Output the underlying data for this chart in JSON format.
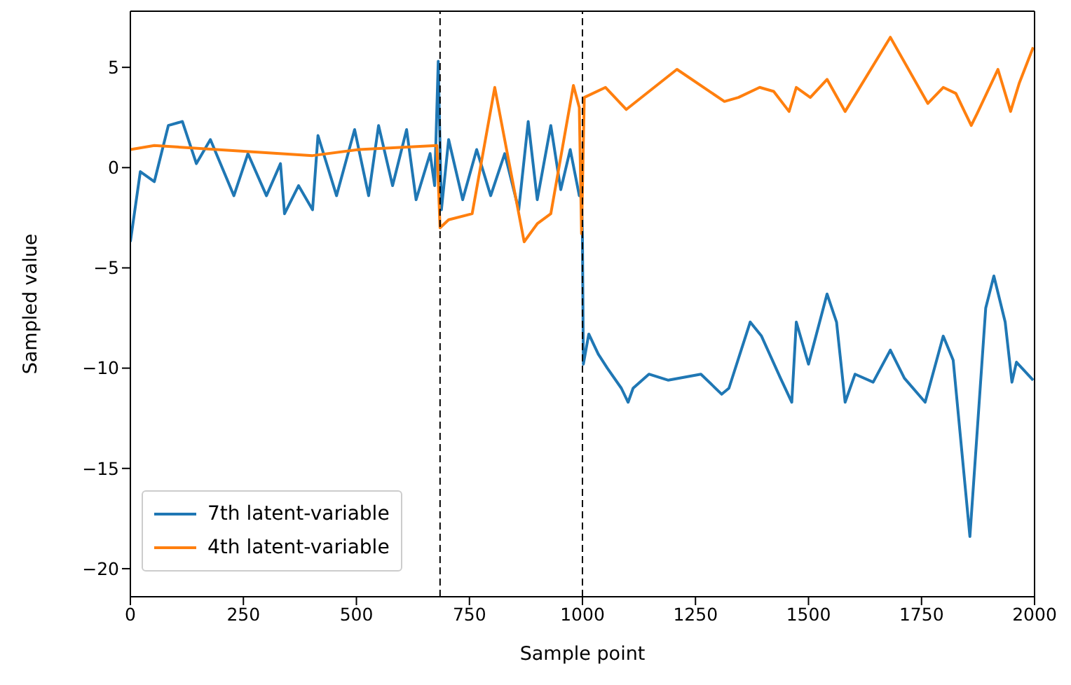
{
  "chart_data": {
    "type": "line",
    "xlabel": "Sample point",
    "ylabel": "Sampled value",
    "xlim": [
      0,
      2000
    ],
    "xticks": [
      0,
      250,
      500,
      750,
      1000,
      1250,
      1500,
      1750,
      2000
    ],
    "ylim": [
      -21.4,
      7.8
    ],
    "yticks": [
      {
        "value": -20,
        "label": "−20"
      },
      {
        "value": -15,
        "label": "−15"
      },
      {
        "value": -10,
        "label": "−10"
      },
      {
        "value": -5,
        "label": "−5"
      },
      0,
      5
    ],
    "legend": "bottom left",
    "marker": "none",
    "line_style": "solid",
    "ref_lines": [
      {
        "axis": "x",
        "value": 685,
        "color": "#000000",
        "line_style": "dashed"
      },
      {
        "axis": "x",
        "value": 1000,
        "color": "#000000",
        "line_style": "dashed"
      }
    ],
    "series": [
      {
        "name": "7th latent-variable",
        "color": "#1f77b4",
        "x": [
          0,
          22,
          53,
          84,
          115,
          146,
          177,
          229,
          260,
          301,
          332,
          341,
          372,
          403,
          415,
          456,
          496,
          527,
          549,
          580,
          611,
          632,
          663,
          673,
          681,
          688,
          704,
          735,
          766,
          797,
          828,
          859,
          880,
          900,
          930,
          952,
          973,
          993,
          998,
          1000,
          1002,
          1014,
          1035,
          1055,
          1086,
          1101,
          1112,
          1147,
          1190,
          1262,
          1308,
          1324,
          1371,
          1396,
          1438,
          1463,
          1473,
          1500,
          1541,
          1562,
          1581,
          1603,
          1643,
          1681,
          1712,
          1758,
          1798,
          1820,
          1857,
          1892,
          1910,
          1935,
          1950,
          1960,
          1997
        ],
        "values": [
          -3.7,
          -0.2,
          -0.7,
          2.1,
          2.3,
          0.2,
          1.4,
          -1.4,
          0.7,
          -1.4,
          0.2,
          -2.3,
          -0.9,
          -2.1,
          1.6,
          -1.4,
          1.9,
          -1.4,
          2.1,
          -0.9,
          1.9,
          -1.6,
          0.7,
          -0.9,
          5.3,
          -2.1,
          1.4,
          -1.6,
          0.9,
          -1.4,
          0.7,
          -2.1,
          2.3,
          -1.6,
          2.1,
          -1.1,
          0.9,
          -1.4,
          -1.4,
          -3.5,
          -9.8,
          -8.3,
          -9.3,
          -10.0,
          -11.0,
          -11.7,
          -11.0,
          -10.3,
          -10.6,
          -10.3,
          -11.3,
          -11.0,
          -7.7,
          -8.4,
          -10.5,
          -11.7,
          -7.7,
          -9.8,
          -6.3,
          -7.7,
          -11.7,
          -10.3,
          -10.7,
          -9.1,
          -10.5,
          -11.7,
          -8.4,
          -9.6,
          -18.4,
          -7.0,
          -5.4,
          -7.7,
          -10.7,
          -9.7,
          -10.6
        ]
      },
      {
        "name": "4th latent-variable",
        "color": "#ff7f0e",
        "x": [
          0,
          53,
          403,
          506,
          678,
          685,
          704,
          756,
          806,
          871,
          900,
          930,
          980,
          993,
          998,
          1004,
          1051,
          1097,
          1209,
          1314,
          1345,
          1392,
          1423,
          1457,
          1473,
          1504,
          1541,
          1581,
          1681,
          1764,
          1798,
          1826,
          1845,
          1860,
          1873,
          1919,
          1947,
          1966,
          1997
        ],
        "values": [
          0.9,
          1.1,
          0.6,
          0.9,
          1.1,
          -3.0,
          -2.6,
          -2.3,
          4.0,
          -3.7,
          -2.8,
          -2.3,
          4.1,
          3.0,
          -3.3,
          3.5,
          4.0,
          2.9,
          4.9,
          3.3,
          3.5,
          4.0,
          3.8,
          2.8,
          4.0,
          3.5,
          4.4,
          2.8,
          6.5,
          3.2,
          4.0,
          3.7,
          2.8,
          2.1,
          2.7,
          4.9,
          2.8,
          4.2,
          6.0
        ]
      }
    ]
  }
}
